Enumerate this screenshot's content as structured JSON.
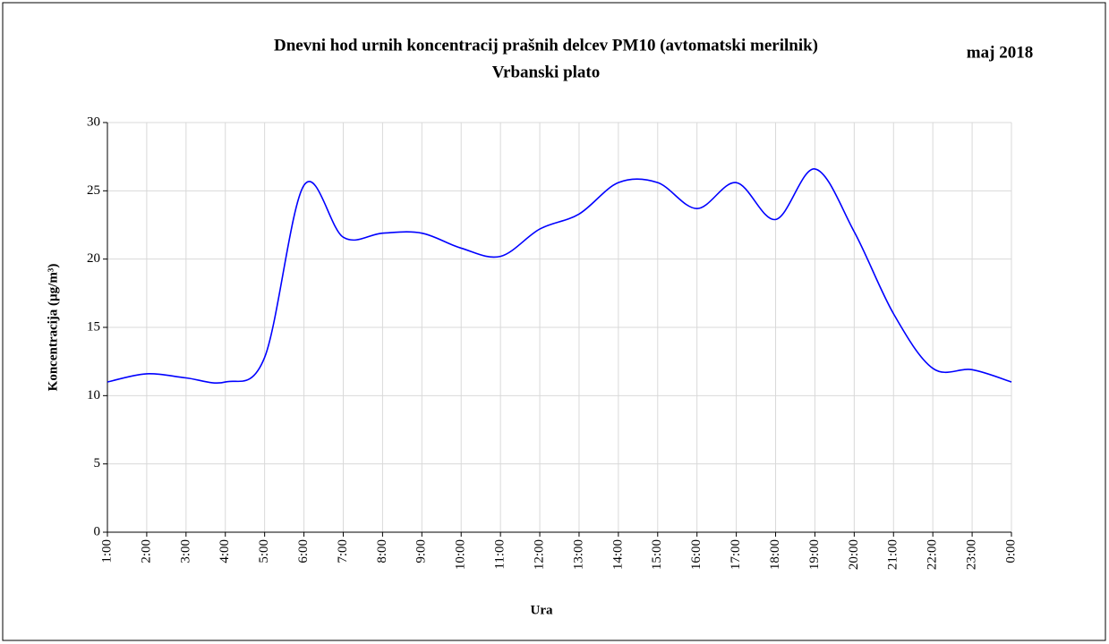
{
  "chart_data": {
    "type": "line",
    "title": "Dnevni hod urnih koncentracij prašnih delcev PM10 (avtomatski merilnik)",
    "subtitle": "Vrbanski plato",
    "annotation": "maj 2018",
    "x_label": "Ura",
    "y_label": "Koncentracija  (µg/m³)",
    "categories": [
      "1:00",
      "2:00",
      "3:00",
      "4:00",
      "5:00",
      "6:00",
      "7:00",
      "8:00",
      "9:00",
      "10:00",
      "11:00",
      "12:00",
      "13:00",
      "14:00",
      "15:00",
      "16:00",
      "17:00",
      "18:00",
      "19:00",
      "20:00",
      "21:00",
      "22:00",
      "23:00",
      "0:00"
    ],
    "series": [
      {
        "name": "PM10",
        "color": "#0000ff",
        "values": [
          11.0,
          11.6,
          11.3,
          11.0,
          12.8,
          25.4,
          21.6,
          21.9,
          21.9,
          20.8,
          20.2,
          22.2,
          23.3,
          25.6,
          25.6,
          23.7,
          25.6,
          22.9,
          26.6,
          22.0,
          16.0,
          12.0,
          11.9,
          11.0
        ]
      }
    ],
    "ylim": [
      0,
      30
    ],
    "yticks": [
      0,
      5,
      10,
      15,
      20,
      25,
      30
    ],
    "grid": true,
    "smooth": true
  }
}
